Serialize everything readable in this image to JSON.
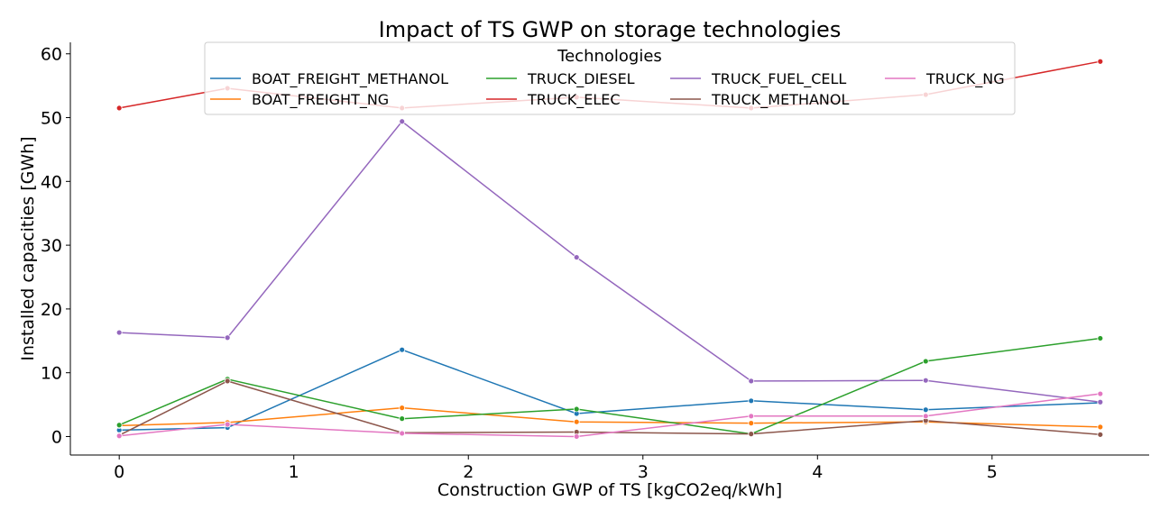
{
  "chart_data": {
    "type": "line",
    "title": "Impact of TS GWP on storage technologies",
    "xlabel": "Construction GWP of TS [kgCO2eq/kWh]",
    "ylabel": "Installed capacities [GWh]",
    "xlim": [
      -0.28,
      5.9
    ],
    "ylim": [
      -2.9,
      61.8
    ],
    "xticks": [
      0,
      1,
      2,
      3,
      4,
      5
    ],
    "yticks": [
      0,
      10,
      20,
      30,
      40,
      50,
      60
    ],
    "grid": false,
    "legend": {
      "title": "Technologies",
      "placement": "top-center",
      "columns": 4
    },
    "x": [
      0,
      0.62,
      1.62,
      2.62,
      3.62,
      4.62,
      5.62
    ],
    "series": [
      {
        "name": "BOAT_FREIGHT_METHANOL",
        "color": "#1f77b4",
        "values": [
          1.0,
          1.4,
          13.6,
          3.6,
          5.6,
          4.2,
          5.3
        ]
      },
      {
        "name": "BOAT_FREIGHT_NG",
        "color": "#ff7f0e",
        "values": [
          1.7,
          2.2,
          4.5,
          2.3,
          2.1,
          2.3,
          1.5
        ]
      },
      {
        "name": "TRUCK_DIESEL",
        "color": "#2ca02c",
        "values": [
          1.8,
          9.0,
          2.8,
          4.3,
          0.4,
          11.8,
          15.4
        ]
      },
      {
        "name": "TRUCK_ELEC",
        "color": "#d62728",
        "values": [
          51.5,
          54.6,
          51.5,
          53.2,
          51.5,
          53.6,
          58.8
        ]
      },
      {
        "name": "TRUCK_FUEL_CELL",
        "color": "#9467bd",
        "values": [
          16.3,
          15.5,
          49.4,
          28.1,
          8.7,
          8.8,
          5.4
        ]
      },
      {
        "name": "TRUCK_METHANOL",
        "color": "#8c564b",
        "values": [
          0.2,
          8.7,
          0.6,
          0.7,
          0.4,
          2.5,
          0.3
        ]
      },
      {
        "name": "TRUCK_NG",
        "color": "#e377c2",
        "values": [
          0.1,
          1.9,
          0.5,
          0.0,
          3.2,
          3.2,
          6.7
        ]
      }
    ]
  }
}
